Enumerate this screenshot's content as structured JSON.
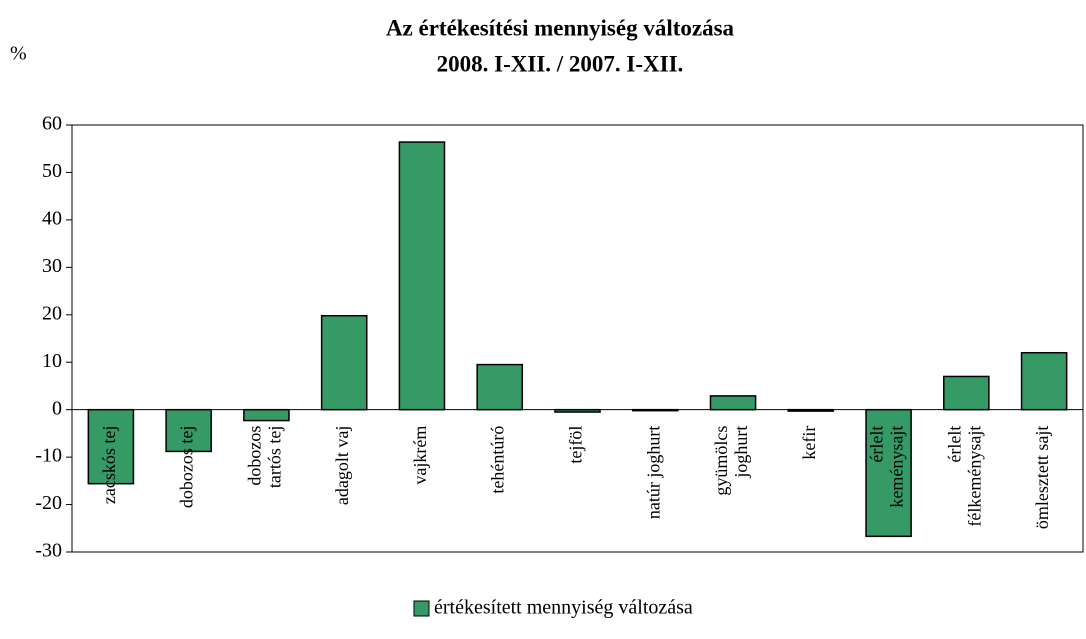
{
  "chart_data": {
    "type": "bar",
    "title": [
      "Az értékesítési mennyiség változása",
      "2008. I-XII. / 2007. I-XII."
    ],
    "y_label": "%",
    "categories": [
      "zacskós tej",
      "dobozos tej",
      "dobozos\ntartós tej",
      "adagolt vaj",
      "vajkrém",
      "tehéntúró",
      "tejföl",
      "natúr joghurt",
      "gyümölcs\njoghurt",
      "kefir",
      "érlelt\nkeménysajt",
      "érlelt\nfélkeménysajt",
      "ömlesztett sajt"
    ],
    "series": [
      {
        "name": "értékesített mennyiség változása",
        "color": "#359a66",
        "values": [
          -15.6,
          -8.8,
          -2.3,
          19.8,
          56.4,
          9.5,
          -0.5,
          -0.2,
          2.9,
          -0.3,
          -26.7,
          7.0,
          12.0
        ]
      }
    ],
    "ylim": [
      -30,
      60
    ],
    "yticks": [
      -30,
      -20,
      -10,
      0,
      10,
      20,
      30,
      40,
      50,
      60
    ],
    "grid": false,
    "legend": "bottom"
  }
}
